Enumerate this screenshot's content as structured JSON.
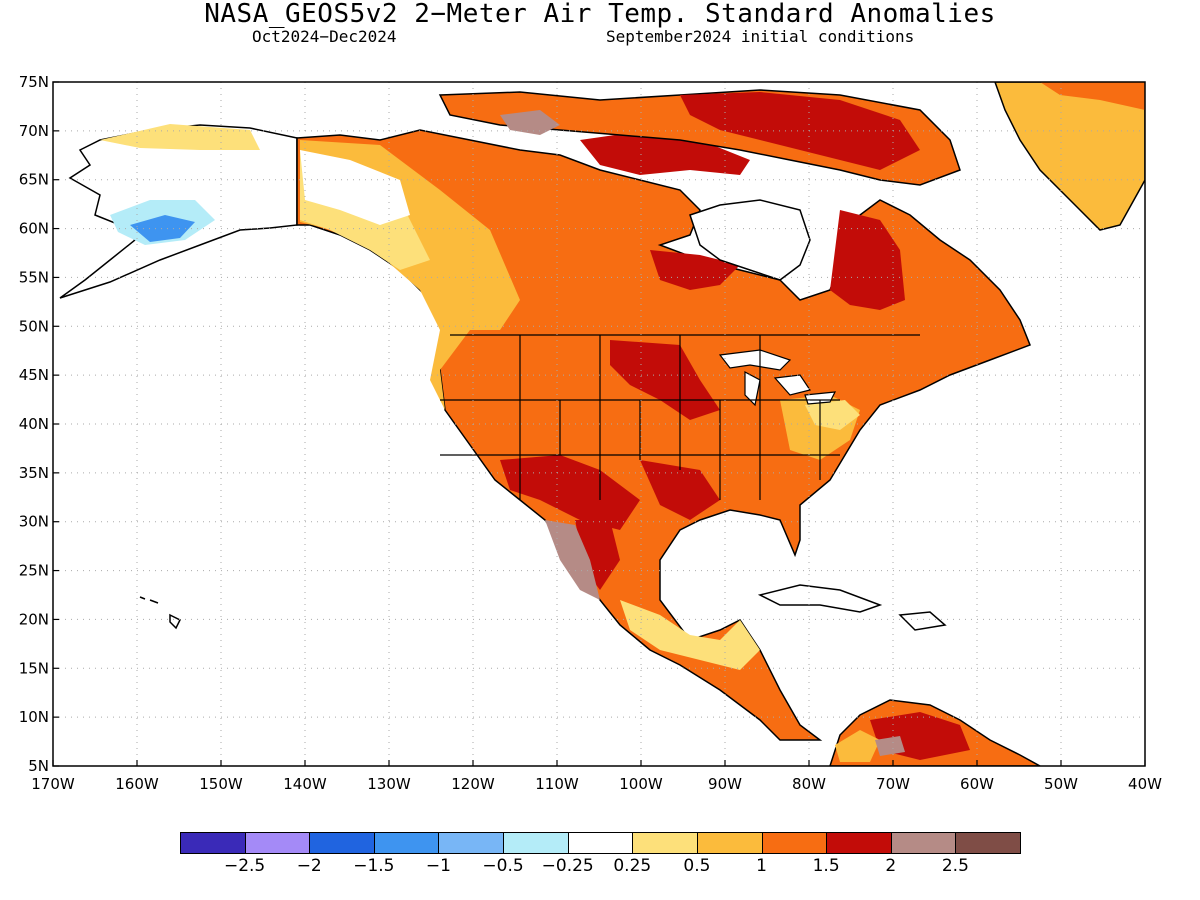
{
  "title": "NASA_GEOS5v2 2−Meter Air Temp. Standard Anomalies",
  "subtitle_left": "Oct2024−Dec2024",
  "subtitle_right": "September2024 initial conditions",
  "map": {
    "lon_range": [
      -170,
      -40
    ],
    "lat_range": [
      5,
      75
    ],
    "lat_labels": [
      "5N",
      "10N",
      "15N",
      "20N",
      "25N",
      "30N",
      "35N",
      "40N",
      "45N",
      "50N",
      "55N",
      "60N",
      "65N",
      "70N",
      "75N"
    ],
    "lon_labels": [
      "170W",
      "160W",
      "150W",
      "140W",
      "130W",
      "120W",
      "110W",
      "100W",
      "90W",
      "80W",
      "70W",
      "60W",
      "50W",
      "40W"
    ],
    "grid": "dotted",
    "ocean_color": "#ffffff",
    "coastline_color": "#000000"
  },
  "colorbar": {
    "colors": [
      "#3a2ab8",
      "#a48af7",
      "#2064e0",
      "#3e94f0",
      "#78b6f6",
      "#b4ecf8",
      "#ffffff",
      "#fde07a",
      "#fbbb3c",
      "#f76d12",
      "#c20c08",
      "#b58b86",
      "#7f4d46"
    ],
    "labels": [
      "−2.5",
      "−2",
      "−1.5",
      "−1",
      "−0.5",
      "−0.25",
      "0.25",
      "0.5",
      "1",
      "1.5",
      "2",
      "2.5"
    ]
  }
}
